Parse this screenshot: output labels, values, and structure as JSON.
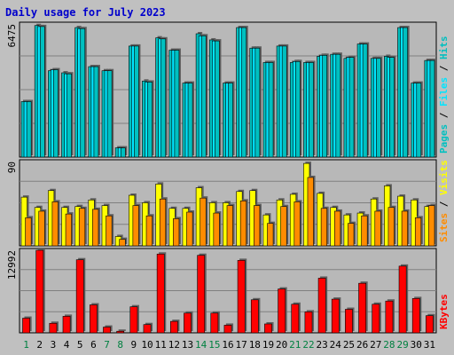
{
  "title": "Daily usage for July 2023",
  "colors": {
    "background": "#c0c0c0",
    "panel": "#b8b8b8",
    "hits": "#00bfbf",
    "files": "#00e5ff",
    "pages": "#00c0c0",
    "visits": "#ffff00",
    "sites": "#ff8c00",
    "kbytes": "#ff0000",
    "weekday_label": "#000000",
    "weekend_label": "#008040",
    "title": "#0000cc"
  },
  "chart_data": [
    {
      "type": "bar",
      "name": "hits-files-pages",
      "ymax_label": "6475",
      "ylim": [
        0,
        6475
      ],
      "grid": true,
      "right_label": {
        "parts": [
          "Pages",
          "Files",
          "Hits"
        ],
        "separator": " / "
      },
      "categories": [
        "1",
        "2",
        "3",
        "4",
        "5",
        "6",
        "7",
        "8",
        "9",
        "10",
        "11",
        "12",
        "13",
        "14",
        "15",
        "16",
        "17",
        "18",
        "19",
        "20",
        "21",
        "22",
        "23",
        "24",
        "25",
        "26",
        "27",
        "28",
        "29",
        "30",
        "31"
      ],
      "series": [
        {
          "name": "Hits",
          "values": [
            2700,
            6400,
            4200,
            4100,
            6300,
            4400,
            4200,
            450,
            5400,
            3700,
            5800,
            5200,
            3600,
            6000,
            5700,
            3600,
            6300,
            5300,
            4600,
            5400,
            4600,
            4600,
            4900,
            5000,
            4800,
            5500,
            4800,
            4900,
            6300,
            3600,
            4700
          ]
        },
        {
          "name": "Files",
          "values": [
            2700,
            6350,
            4250,
            4050,
            6250,
            4400,
            4200,
            450,
            5400,
            3650,
            5750,
            5200,
            3600,
            5900,
            5650,
            3600,
            6300,
            5300,
            4600,
            5400,
            4650,
            4600,
            4950,
            5000,
            4850,
            5500,
            4800,
            4850,
            6300,
            3600,
            4700
          ]
        },
        {
          "name": "Pages",
          "values": [
            2700,
            6350,
            4250,
            4050,
            6250,
            4400,
            4200,
            450,
            5400,
            3650,
            5750,
            5200,
            3600,
            5900,
            5650,
            3600,
            6300,
            5300,
            4600,
            5400,
            4650,
            4600,
            4950,
            5000,
            4850,
            5500,
            4800,
            4850,
            6300,
            3600,
            4700
          ]
        }
      ]
    },
    {
      "type": "bar",
      "name": "visits-sites",
      "ymax_label": "90",
      "ylim": [
        0,
        90
      ],
      "grid": true,
      "right_label": {
        "parts": [
          "Sites",
          "Visits"
        ],
        "separator": " / "
      },
      "categories": [
        "1",
        "2",
        "3",
        "4",
        "5",
        "6",
        "7",
        "8",
        "9",
        "10",
        "11",
        "12",
        "13",
        "14",
        "15",
        "16",
        "17",
        "18",
        "19",
        "20",
        "21",
        "22",
        "23",
        "24",
        "25",
        "26",
        "27",
        "28",
        "29",
        "30",
        "31"
      ],
      "series": [
        {
          "name": "Visits",
          "values": [
            52,
            41,
            59,
            41,
            42,
            49,
            43,
            10,
            54,
            46,
            66,
            40,
            40,
            62,
            46,
            46,
            58,
            59,
            33,
            49,
            55,
            88,
            56,
            41,
            33,
            35,
            50,
            64,
            53,
            49,
            42
          ]
        },
        {
          "name": "Sites",
          "values": [
            30,
            37,
            47,
            34,
            40,
            39,
            32,
            7,
            43,
            32,
            50,
            29,
            36,
            51,
            35,
            43,
            48,
            43,
            24,
            42,
            47,
            73,
            40,
            37,
            24,
            32,
            37,
            41,
            37,
            30,
            43
          ]
        }
      ]
    },
    {
      "type": "bar",
      "name": "kbytes",
      "ymax_label": "12992",
      "ylim": [
        0,
        12992
      ],
      "grid": true,
      "right_label": {
        "parts": [
          "KBytes"
        ],
        "separator": ""
      },
      "categories": [
        "1",
        "2",
        "3",
        "4",
        "5",
        "6",
        "7",
        "8",
        "9",
        "10",
        "11",
        "12",
        "13",
        "14",
        "15",
        "16",
        "17",
        "18",
        "19",
        "20",
        "21",
        "22",
        "23",
        "24",
        "25",
        "26",
        "27",
        "28",
        "29",
        "30",
        "31"
      ],
      "series": [
        {
          "name": "KBytes",
          "values": [
            2300,
            12992,
            1500,
            2600,
            11500,
            4400,
            900,
            250,
            4100,
            1300,
            12400,
            1800,
            3100,
            12200,
            3100,
            1200,
            11400,
            5200,
            1400,
            6900,
            4500,
            3300,
            8600,
            5300,
            3700,
            7800,
            4500,
            5000,
            10500,
            5400,
            2700
          ]
        }
      ]
    }
  ],
  "x_labels": {
    "days": [
      "1",
      "2",
      "3",
      "4",
      "5",
      "6",
      "7",
      "8",
      "9",
      "10",
      "11",
      "12",
      "13",
      "14",
      "15",
      "16",
      "17",
      "18",
      "19",
      "20",
      "21",
      "22",
      "23",
      "24",
      "25",
      "26",
      "27",
      "28",
      "29",
      "30",
      "31"
    ],
    "weekend": [
      1,
      7,
      8,
      14,
      15,
      21,
      22,
      28,
      29
    ]
  }
}
